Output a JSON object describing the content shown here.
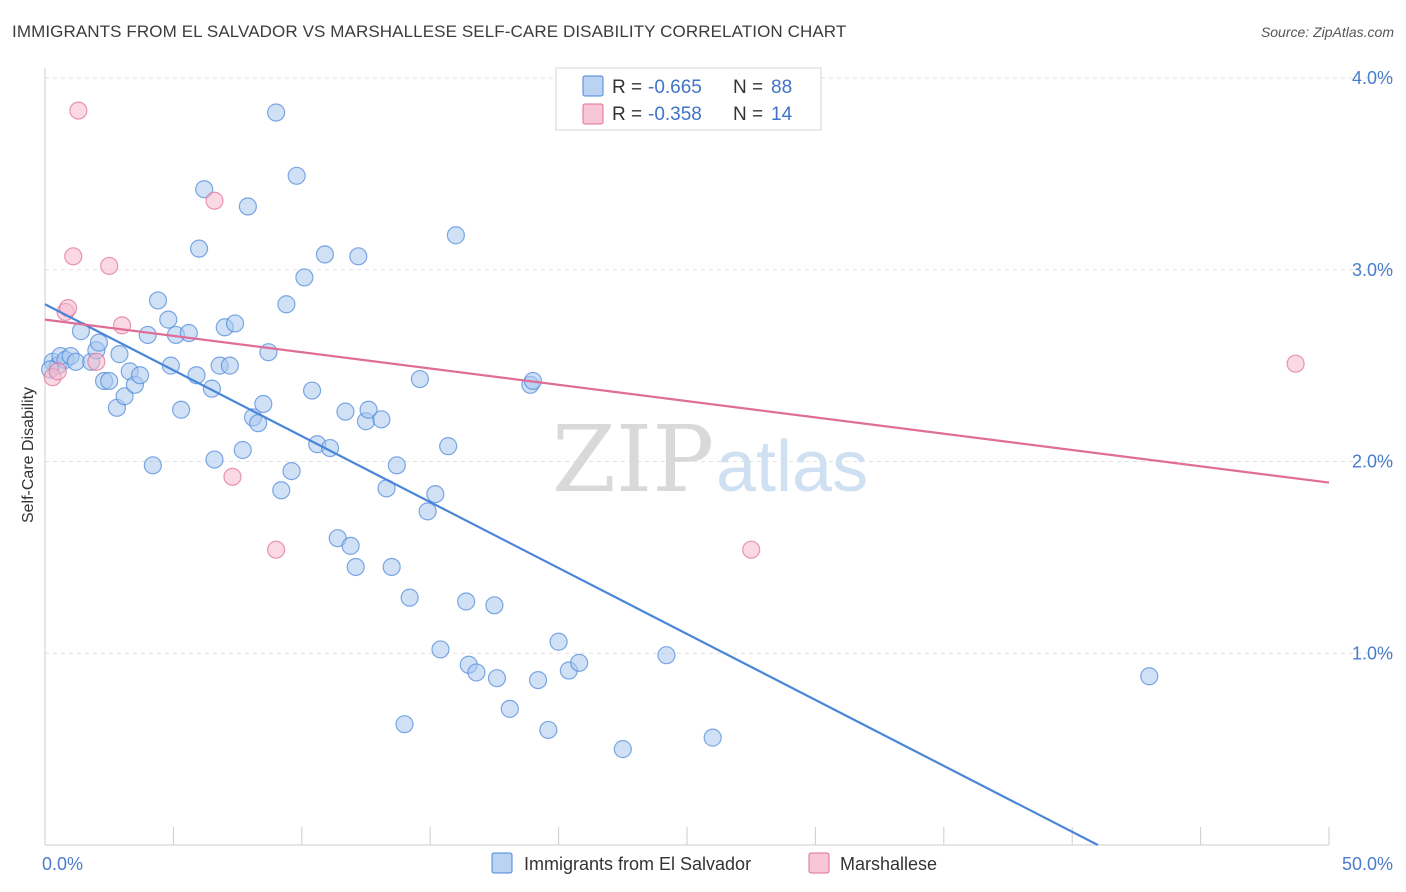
{
  "title": "IMMIGRANTS FROM EL SALVADOR VS MARSHALLESE SELF-CARE DISABILITY CORRELATION CHART",
  "source": "Source: ZipAtlas.com",
  "watermark": {
    "zip": "ZIP",
    "atlas": "atlas"
  },
  "chart_data": {
    "type": "scatter",
    "ylabel": "Self-Care Disability",
    "xlim": [
      0,
      50
    ],
    "ylim": [
      0,
      4.0
    ],
    "x_tick_labels": [
      "0.0%",
      "50.0%"
    ],
    "y_ticks": [
      1.0,
      2.0,
      3.0,
      4.0
    ],
    "y_tick_labels": [
      "1.0%",
      "2.0%",
      "3.0%",
      "4.0%"
    ],
    "grid": true,
    "legend_placement": "top-center",
    "legend": [
      {
        "r_label": "R = ",
        "r_value": "-0.665",
        "n_label": "N = ",
        "n_value": "88"
      },
      {
        "r_label": "R = ",
        "r_value": "-0.358",
        "n_label": "N = ",
        "n_value": "14"
      }
    ],
    "series": [
      {
        "name": "Immigrants from El Salvador",
        "color": "#4a86d8",
        "fill": "#a9c8ef",
        "trend": {
          "x0": 0,
          "y0": 2.82,
          "x1": 41,
          "y1": 0.0
        },
        "points": [
          [
            0.3,
            2.52
          ],
          [
            0.5,
            2.5
          ],
          [
            0.6,
            2.55
          ],
          [
            0.8,
            2.53
          ],
          [
            1.0,
            2.55
          ],
          [
            1.2,
            2.52
          ],
          [
            1.4,
            2.68
          ],
          [
            1.8,
            2.52
          ],
          [
            2.0,
            2.58
          ],
          [
            2.1,
            2.62
          ],
          [
            2.3,
            2.42
          ],
          [
            2.5,
            2.42
          ],
          [
            2.8,
            2.28
          ],
          [
            2.9,
            2.56
          ],
          [
            3.1,
            2.34
          ],
          [
            3.3,
            2.47
          ],
          [
            3.5,
            2.4
          ],
          [
            3.7,
            2.45
          ],
          [
            4.0,
            2.66
          ],
          [
            4.2,
            1.98
          ],
          [
            4.4,
            2.84
          ],
          [
            4.8,
            2.74
          ],
          [
            4.9,
            2.5
          ],
          [
            5.1,
            2.66
          ],
          [
            5.3,
            2.27
          ],
          [
            5.6,
            2.67
          ],
          [
            5.9,
            2.45
          ],
          [
            6.0,
            3.11
          ],
          [
            6.2,
            3.42
          ],
          [
            6.5,
            2.38
          ],
          [
            6.6,
            2.01
          ],
          [
            6.8,
            2.5
          ],
          [
            7.0,
            2.7
          ],
          [
            7.2,
            2.5
          ],
          [
            7.4,
            2.72
          ],
          [
            7.7,
            2.06
          ],
          [
            7.9,
            3.33
          ],
          [
            8.1,
            2.23
          ],
          [
            8.3,
            2.2
          ],
          [
            8.5,
            2.3
          ],
          [
            8.7,
            2.57
          ],
          [
            9.0,
            3.82
          ],
          [
            9.2,
            1.85
          ],
          [
            9.4,
            2.82
          ],
          [
            9.6,
            1.95
          ],
          [
            9.8,
            3.49
          ],
          [
            10.1,
            2.96
          ],
          [
            10.4,
            2.37
          ],
          [
            10.6,
            2.09
          ],
          [
            10.9,
            3.08
          ],
          [
            11.1,
            2.07
          ],
          [
            11.4,
            1.6
          ],
          [
            11.7,
            2.26
          ],
          [
            11.9,
            1.56
          ],
          [
            12.1,
            1.45
          ],
          [
            12.2,
            3.07
          ],
          [
            12.5,
            2.21
          ],
          [
            12.6,
            2.27
          ],
          [
            13.1,
            2.22
          ],
          [
            13.3,
            1.86
          ],
          [
            13.5,
            1.45
          ],
          [
            13.7,
            1.98
          ],
          [
            14.0,
            0.63
          ],
          [
            14.2,
            1.29
          ],
          [
            14.6,
            2.43
          ],
          [
            14.9,
            1.74
          ],
          [
            15.2,
            1.83
          ],
          [
            15.4,
            1.02
          ],
          [
            15.7,
            2.08
          ],
          [
            16.0,
            3.18
          ],
          [
            16.4,
            1.27
          ],
          [
            16.5,
            0.94
          ],
          [
            16.8,
            0.9
          ],
          [
            17.5,
            1.25
          ],
          [
            17.6,
            0.87
          ],
          [
            18.1,
            0.71
          ],
          [
            18.9,
            2.4
          ],
          [
            19.0,
            2.42
          ],
          [
            19.2,
            0.86
          ],
          [
            19.6,
            0.6
          ],
          [
            20.0,
            1.06
          ],
          [
            20.4,
            0.91
          ],
          [
            20.8,
            0.95
          ],
          [
            22.5,
            0.5
          ],
          [
            24.2,
            0.99
          ],
          [
            26.0,
            0.56
          ],
          [
            43.0,
            0.88
          ],
          [
            0.2,
            2.48
          ]
        ]
      },
      {
        "name": "Marshallese",
        "color": "#e06d97",
        "fill": "#f6b9cd",
        "trend": {
          "x0": 0,
          "y0": 2.74,
          "x1": 50,
          "y1": 1.89
        },
        "points": [
          [
            0.3,
            2.44
          ],
          [
            0.5,
            2.47
          ],
          [
            0.8,
            2.78
          ],
          [
            0.9,
            2.8
          ],
          [
            1.1,
            3.07
          ],
          [
            1.3,
            3.83
          ],
          [
            2.0,
            2.52
          ],
          [
            2.5,
            3.02
          ],
          [
            3.0,
            2.71
          ],
          [
            6.6,
            3.36
          ],
          [
            7.3,
            1.92
          ],
          [
            9.0,
            1.54
          ],
          [
            27.5,
            1.54
          ],
          [
            48.7,
            2.51
          ]
        ]
      }
    ]
  }
}
